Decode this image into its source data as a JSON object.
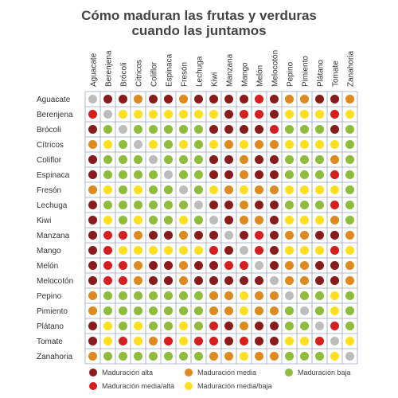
{
  "title_line1": "Cómo maduran las frutas y verduras",
  "title_line2": "cuando las juntamos",
  "colors": {
    "alta": "#8b1a1a",
    "media_alta": "#d91d1d",
    "media": "#e08a1e",
    "media_baja": "#ffe01a",
    "baja": "#8fbd3a",
    "ninguna": "#bdbdbd",
    "grid": "#9aa9bd"
  },
  "legend": [
    {
      "key": "alta",
      "label": "Maduración alta"
    },
    {
      "key": "media",
      "label": "Maduración media"
    },
    {
      "key": "baja",
      "label": "Maduración baja"
    },
    {
      "key": "media_alta",
      "label": "Maduración media/alta"
    },
    {
      "key": "media_baja",
      "label": "Maduración media/baja"
    }
  ],
  "chart_data": {
    "type": "heatmap",
    "columns": [
      "Aguacate",
      "Berenjena",
      "Brócoli",
      "Cítricos",
      "Coliflor",
      "Espinaca",
      "Fresón",
      "Lechuga",
      "Kiwi",
      "Manzana",
      "Mango",
      "Melón",
      "Melocotón",
      "Pepino",
      "Pimiento",
      "Plátano",
      "Tomate",
      "Zanahoria"
    ],
    "rows": [
      "Aguacate",
      "Berenjena",
      "Brócoli",
      "Cítricos",
      "Coliflor",
      "Espinaca",
      "Fresón",
      "Lechuga",
      "Kiwi",
      "Manzana",
      "Mango",
      "Melón",
      "Melocotón",
      "Pepino",
      "Pimiento",
      "Plátano",
      "Tomate",
      "Zanahoria"
    ],
    "cells": [
      [
        "ninguna",
        "alta",
        "alta",
        "media",
        "alta",
        "alta",
        "media",
        "alta",
        "alta",
        "alta",
        "alta",
        "media_alta",
        "alta",
        "media",
        "media",
        "alta",
        "alta",
        "media"
      ],
      [
        "media_alta",
        "ninguna",
        "media_baja",
        "media_baja",
        "media_baja",
        "media_baja",
        "media_baja",
        "media_baja",
        "media_baja",
        "alta",
        "media_alta",
        "media_alta",
        "alta",
        "media_baja",
        "media_baja",
        "media_baja",
        "media_alta",
        "media_baja"
      ],
      [
        "alta",
        "baja",
        "ninguna",
        "baja",
        "baja",
        "baja",
        "baja",
        "baja",
        "alta",
        "alta",
        "alta",
        "alta",
        "media_alta",
        "baja",
        "baja",
        "baja",
        "alta",
        "baja"
      ],
      [
        "media",
        "media_baja",
        "baja",
        "ninguna",
        "media_baja",
        "baja",
        "media_baja",
        "baja",
        "media_baja",
        "media",
        "media_baja",
        "media",
        "media",
        "media_baja",
        "media_baja",
        "media_baja",
        "media_baja",
        "baja"
      ],
      [
        "alta",
        "baja",
        "baja",
        "baja",
        "ninguna",
        "baja",
        "baja",
        "baja",
        "alta",
        "alta",
        "media",
        "alta",
        "alta",
        "baja",
        "baja",
        "baja",
        "media",
        "baja"
      ],
      [
        "alta",
        "baja",
        "baja",
        "baja",
        "baja",
        "ninguna",
        "baja",
        "baja",
        "alta",
        "alta",
        "media",
        "alta",
        "alta",
        "baja",
        "baja",
        "baja",
        "media_alta",
        "baja"
      ],
      [
        "media",
        "media_baja",
        "baja",
        "media_baja",
        "baja",
        "baja",
        "ninguna",
        "baja",
        "media_baja",
        "media",
        "media_baja",
        "media",
        "media",
        "media_baja",
        "media_baja",
        "media_baja",
        "media_baja",
        "baja"
      ],
      [
        "alta",
        "baja",
        "baja",
        "baja",
        "baja",
        "baja",
        "baja",
        "ninguna",
        "alta",
        "alta",
        "media",
        "alta",
        "alta",
        "baja",
        "baja",
        "baja",
        "media_alta",
        "baja"
      ],
      [
        "alta",
        "media_baja",
        "baja",
        "media_baja",
        "baja",
        "baja",
        "media_baja",
        "baja",
        "ninguna",
        "alta",
        "media",
        "media",
        "alta",
        "media_baja",
        "media_baja",
        "media_baja",
        "media",
        "baja"
      ],
      [
        "alta",
        "media_alta",
        "media_alta",
        "media",
        "alta",
        "alta",
        "media",
        "alta",
        "alta",
        "ninguna",
        "alta",
        "media_alta",
        "alta",
        "media",
        "media",
        "alta",
        "alta",
        "media"
      ],
      [
        "alta",
        "media_alta",
        "media_baja",
        "media_baja",
        "media_baja",
        "media_baja",
        "media_baja",
        "media_baja",
        "media_alta",
        "alta",
        "ninguna",
        "media_alta",
        "alta",
        "media_baja",
        "media_baja",
        "media_baja",
        "media_alta",
        "media_baja"
      ],
      [
        "alta",
        "media_alta",
        "media_alta",
        "media",
        "alta",
        "alta",
        "media",
        "alta",
        "alta",
        "media_alta",
        "media_alta",
        "ninguna",
        "alta",
        "media",
        "media",
        "alta",
        "alta",
        "media"
      ],
      [
        "alta",
        "media_alta",
        "media_alta",
        "media",
        "alta",
        "alta",
        "media",
        "alta",
        "alta",
        "alta",
        "alta",
        "alta",
        "ninguna",
        "media",
        "media",
        "alta",
        "alta",
        "media"
      ],
      [
        "media",
        "baja",
        "baja",
        "baja",
        "baja",
        "baja",
        "baja",
        "baja",
        "media",
        "media",
        "media_baja",
        "media",
        "media",
        "ninguna",
        "baja",
        "baja",
        "media_baja",
        "baja"
      ],
      [
        "media",
        "baja",
        "baja",
        "baja",
        "baja",
        "baja",
        "baja",
        "baja",
        "media",
        "media",
        "media_baja",
        "media",
        "media",
        "baja",
        "ninguna",
        "baja",
        "media_baja",
        "baja"
      ],
      [
        "alta",
        "media_baja",
        "baja",
        "media_baja",
        "baja",
        "baja",
        "media_baja",
        "baja",
        "media_alta",
        "alta",
        "media",
        "alta",
        "alta",
        "baja",
        "baja",
        "ninguna",
        "media_alta",
        "baja"
      ],
      [
        "alta",
        "media_baja",
        "media_alta",
        "media_baja",
        "media",
        "media_alta",
        "media_baja",
        "media_alta",
        "media_alta",
        "alta",
        "media_alta",
        "alta",
        "alta",
        "media_baja",
        "media_baja",
        "media_alta",
        "ninguna",
        "media_baja"
      ],
      [
        "media",
        "baja",
        "baja",
        "baja",
        "baja",
        "baja",
        "baja",
        "baja",
        "media",
        "media",
        "media_baja",
        "media",
        "media",
        "baja",
        "baja",
        "baja",
        "media_baja",
        "ninguna"
      ]
    ]
  }
}
